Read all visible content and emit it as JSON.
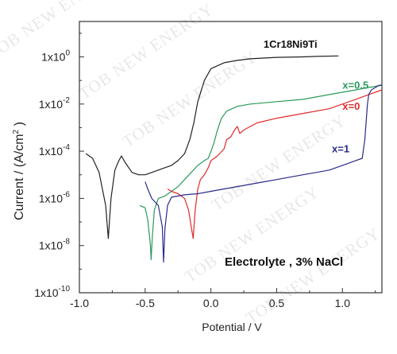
{
  "chart_data": {
    "type": "line",
    "xlabel": "Potential / V",
    "ylabel": "Current / (A/cm",
    "ylabel_sup": "2",
    "ylabel_end": " )",
    "xlim": [
      -1.0,
      1.3
    ],
    "ylim_log10": [
      -10,
      1.5
    ],
    "y_scale": "log",
    "xticks": [
      -1.0,
      -0.5,
      0.0,
      0.5,
      1.0
    ],
    "xtick_labels": [
      "-1.0",
      "-0.5",
      "0.0",
      "0.5",
      "1.0"
    ],
    "yticks_log10": [
      -10,
      -8,
      -6,
      -4,
      -2,
      0
    ],
    "ytick_base": "1x10",
    "ytick_exponents": [
      "-10",
      "-8",
      "-6",
      "-4",
      "-2",
      "0"
    ],
    "grid": false,
    "annotation": "Electrolyte , 3% NaCl",
    "series": [
      {
        "name": "1Cr18Ni9Ti",
        "color": "#222222",
        "points": [
          [
            -0.95,
            -4.1
          ],
          [
            -0.9,
            -4.3
          ],
          [
            -0.85,
            -4.9
          ],
          [
            -0.8,
            -6.3
          ],
          [
            -0.78,
            -7.7
          ],
          [
            -0.76,
            -6.0
          ],
          [
            -0.73,
            -4.8
          ],
          [
            -0.7,
            -4.4
          ],
          [
            -0.68,
            -4.2
          ],
          [
            -0.65,
            -4.5
          ],
          [
            -0.6,
            -4.9
          ],
          [
            -0.55,
            -5.0
          ],
          [
            -0.5,
            -5.0
          ],
          [
            -0.45,
            -4.9
          ],
          [
            -0.4,
            -4.8
          ],
          [
            -0.35,
            -4.7
          ],
          [
            -0.3,
            -4.6
          ],
          [
            -0.25,
            -4.4
          ],
          [
            -0.2,
            -4.1
          ],
          [
            -0.16,
            -3.5
          ],
          [
            -0.13,
            -2.8
          ],
          [
            -0.1,
            -1.9
          ],
          [
            -0.05,
            -1.0
          ],
          [
            0.0,
            -0.5
          ],
          [
            0.1,
            -0.25
          ],
          [
            0.2,
            -0.15
          ],
          [
            0.3,
            -0.08
          ],
          [
            0.5,
            -0.02
          ],
          [
            0.7,
            0.0
          ],
          [
            0.8,
            0.02
          ],
          [
            0.97,
            0.04
          ]
        ]
      },
      {
        "name": "x=0.5",
        "color": "#2a9a5a",
        "points": [
          [
            -0.54,
            -6.3
          ],
          [
            -0.5,
            -6.4
          ],
          [
            -0.48,
            -6.9
          ],
          [
            -0.46,
            -8.0
          ],
          [
            -0.455,
            -8.6
          ],
          [
            -0.445,
            -7.6
          ],
          [
            -0.43,
            -6.5
          ],
          [
            -0.4,
            -6.0
          ],
          [
            -0.35,
            -5.9
          ],
          [
            -0.3,
            -5.7
          ],
          [
            -0.25,
            -5.5
          ],
          [
            -0.2,
            -5.2
          ],
          [
            -0.15,
            -4.9
          ],
          [
            -0.1,
            -4.6
          ],
          [
            -0.05,
            -4.4
          ],
          [
            -0.02,
            -4.3
          ],
          [
            0.0,
            -4.0
          ],
          [
            0.02,
            -3.7
          ],
          [
            0.05,
            -3.1
          ],
          [
            0.08,
            -2.6
          ],
          [
            0.12,
            -2.3
          ],
          [
            0.2,
            -2.1
          ],
          [
            0.3,
            -2.0
          ],
          [
            0.5,
            -1.9
          ],
          [
            0.7,
            -1.8
          ],
          [
            0.9,
            -1.6
          ],
          [
            1.1,
            -1.4
          ],
          [
            1.2,
            -1.3
          ],
          [
            1.3,
            -1.2
          ]
        ]
      },
      {
        "name": "x=0",
        "color": "#e02a2a",
        "points": [
          [
            -0.33,
            -5.6
          ],
          [
            -0.3,
            -5.7
          ],
          [
            -0.25,
            -5.8
          ],
          [
            -0.2,
            -6.0
          ],
          [
            -0.17,
            -6.5
          ],
          [
            -0.15,
            -7.2
          ],
          [
            -0.135,
            -7.7
          ],
          [
            -0.12,
            -6.5
          ],
          [
            -0.1,
            -5.6
          ],
          [
            -0.08,
            -5.2
          ],
          [
            -0.05,
            -5.0
          ],
          [
            -0.02,
            -4.7
          ],
          [
            0.0,
            -4.4
          ],
          [
            0.05,
            -4.2
          ],
          [
            0.1,
            -3.9
          ],
          [
            0.12,
            -3.5
          ],
          [
            0.15,
            -3.4
          ],
          [
            0.18,
            -3.1
          ],
          [
            0.2,
            -2.95
          ],
          [
            0.22,
            -3.25
          ],
          [
            0.25,
            -3.1
          ],
          [
            0.35,
            -2.8
          ],
          [
            0.5,
            -2.6
          ],
          [
            0.7,
            -2.4
          ],
          [
            0.9,
            -2.2
          ],
          [
            1.0,
            -2.0
          ],
          [
            1.1,
            -1.8
          ],
          [
            1.2,
            -1.6
          ],
          [
            1.3,
            -1.4
          ]
        ]
      },
      {
        "name": "x=1",
        "color": "#2a2a8a",
        "points": [
          [
            -0.5,
            -5.3
          ],
          [
            -0.48,
            -5.6
          ],
          [
            -0.45,
            -6.0
          ],
          [
            -0.4,
            -6.3
          ],
          [
            -0.37,
            -7.2
          ],
          [
            -0.36,
            -8.7
          ],
          [
            -0.35,
            -7.3
          ],
          [
            -0.33,
            -6.3
          ],
          [
            -0.3,
            -5.95
          ],
          [
            -0.2,
            -5.85
          ],
          [
            -0.1,
            -5.8
          ],
          [
            0.0,
            -5.7
          ],
          [
            0.1,
            -5.6
          ],
          [
            0.2,
            -5.5
          ],
          [
            0.3,
            -5.4
          ],
          [
            0.4,
            -5.3
          ],
          [
            0.5,
            -5.2
          ],
          [
            0.6,
            -5.1
          ],
          [
            0.7,
            -5.0
          ],
          [
            0.8,
            -4.9
          ],
          [
            0.9,
            -4.8
          ],
          [
            1.0,
            -4.6
          ],
          [
            1.1,
            -4.4
          ],
          [
            1.15,
            -4.3
          ],
          [
            1.17,
            -3.5
          ],
          [
            1.19,
            -2.0
          ],
          [
            1.2,
            -1.6
          ],
          [
            1.22,
            -1.4
          ],
          [
            1.25,
            -1.3
          ],
          [
            1.28,
            -1.2
          ],
          [
            1.3,
            -1.2
          ]
        ]
      }
    ],
    "series_labels": [
      {
        "series": "1Cr18Ni9Ti",
        "x": 0.4,
        "y": 0.38
      },
      {
        "series": "x=0.5",
        "x": 1.0,
        "y": -1.35
      },
      {
        "series": "x=0",
        "x": 1.0,
        "y": -2.25
      },
      {
        "series": "x=1",
        "x": 0.92,
        "y": -4.05
      }
    ]
  },
  "watermark": {
    "text": "TOB NEW ENERGY",
    "color": "#000000"
  }
}
